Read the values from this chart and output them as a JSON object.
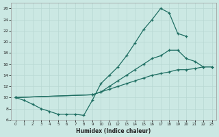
{
  "xlabel": "Humidex (Indice chaleur)",
  "bg_color": "#cbe8e3",
  "line_color": "#1e6e62",
  "grid_color": "#b8d8d2",
  "xlim": [
    -0.5,
    23.5
  ],
  "ylim": [
    6,
    27
  ],
  "xticks": [
    0,
    1,
    2,
    3,
    4,
    5,
    6,
    7,
    8,
    9,
    10,
    11,
    12,
    13,
    14,
    15,
    16,
    17,
    18,
    19,
    20,
    21,
    22,
    23
  ],
  "yticks": [
    6,
    8,
    10,
    12,
    14,
    16,
    18,
    20,
    22,
    24,
    26
  ],
  "line1_x": [
    0,
    1,
    2,
    3,
    4,
    5,
    6,
    7,
    8,
    9,
    10,
    11,
    12,
    13,
    14,
    15,
    16,
    17,
    18,
    19,
    20
  ],
  "line1_y": [
    10.0,
    9.5,
    8.8,
    8.0,
    7.5,
    7.0,
    7.0,
    7.0,
    6.8,
    9.5,
    12.5,
    14.0,
    15.5,
    17.5,
    19.8,
    22.2,
    24.0,
    26.0,
    25.2,
    21.5,
    21.0
  ],
  "line2_x": [
    0,
    9,
    10,
    11,
    12,
    13,
    14,
    15,
    16,
    17,
    18,
    19,
    20,
    21,
    22,
    23
  ],
  "line2_y": [
    10.0,
    10.5,
    11.0,
    12.0,
    13.0,
    14.0,
    15.0,
    16.0,
    17.0,
    17.5,
    18.5,
    18.5,
    17.0,
    16.5,
    15.5,
    15.5
  ],
  "line3_x": [
    0,
    9,
    10,
    11,
    12,
    13,
    14,
    15,
    16,
    17,
    18,
    19,
    20,
    21,
    22,
    23
  ],
  "line3_y": [
    10.0,
    10.5,
    11.0,
    11.5,
    12.0,
    12.5,
    13.0,
    13.5,
    14.0,
    14.3,
    14.6,
    15.0,
    15.0,
    15.2,
    15.5,
    15.5
  ]
}
